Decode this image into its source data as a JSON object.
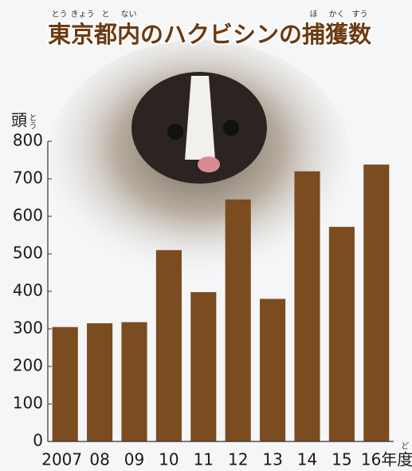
{
  "chart_data": {
    "type": "bar",
    "title": "東京都内のハクビシンの捕獲数",
    "title_ruby": [
      "とう",
      "きょう",
      "と",
      "ない",
      "ほ",
      "かく",
      "すう"
    ],
    "y_label": "頭",
    "y_label_ruby": "とう",
    "x_unit": "年度",
    "x_unit_ruby": "ど",
    "categories": [
      "2007",
      "08",
      "09",
      "10",
      "11",
      "12",
      "13",
      "14",
      "15",
      "16"
    ],
    "values": [
      305,
      315,
      318,
      510,
      398,
      645,
      380,
      720,
      572,
      738
    ],
    "color": "#7a4c20",
    "ylim": [
      0,
      800
    ],
    "yticks": [
      0,
      100,
      200,
      300,
      400,
      500,
      600,
      700,
      800
    ]
  }
}
